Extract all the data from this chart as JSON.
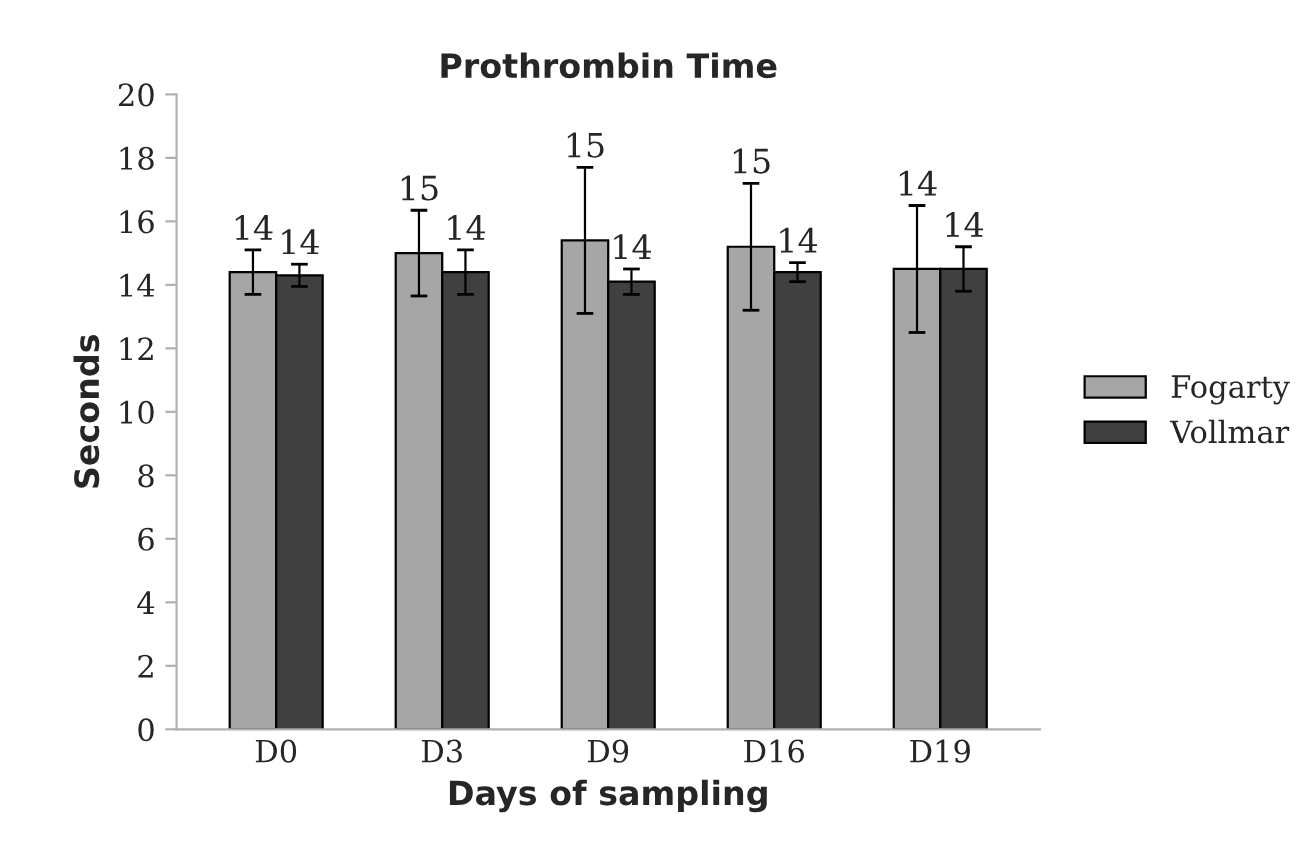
{
  "chart_data": {
    "type": "bar",
    "title": "Prothrombin Time",
    "xlabel": "Days of sampling",
    "ylabel": "Seconds",
    "categories": [
      "D0",
      "D3",
      "D9",
      "D16",
      "D19"
    ],
    "series": [
      {
        "name": "Fogarty",
        "color": "#a6a6a6",
        "values": [
          14.4,
          15.0,
          15.4,
          15.2,
          14.5
        ],
        "errors": [
          0.7,
          1.35,
          2.3,
          2.0,
          2.0
        ],
        "value_labels": [
          "14",
          "15",
          "15",
          "15",
          "14"
        ]
      },
      {
        "name": "Vollmar",
        "color": "#404040",
        "values": [
          14.3,
          14.4,
          14.1,
          14.4,
          14.5
        ],
        "errors": [
          0.35,
          0.7,
          0.4,
          0.3,
          0.7
        ],
        "value_labels": [
          "14",
          "14",
          "14",
          "14",
          "14"
        ]
      }
    ],
    "ylim": [
      0,
      20
    ],
    "yticks": [
      0,
      2,
      4,
      6,
      8,
      10,
      12,
      14,
      16,
      18,
      20
    ],
    "grid": false,
    "legend": "right"
  }
}
